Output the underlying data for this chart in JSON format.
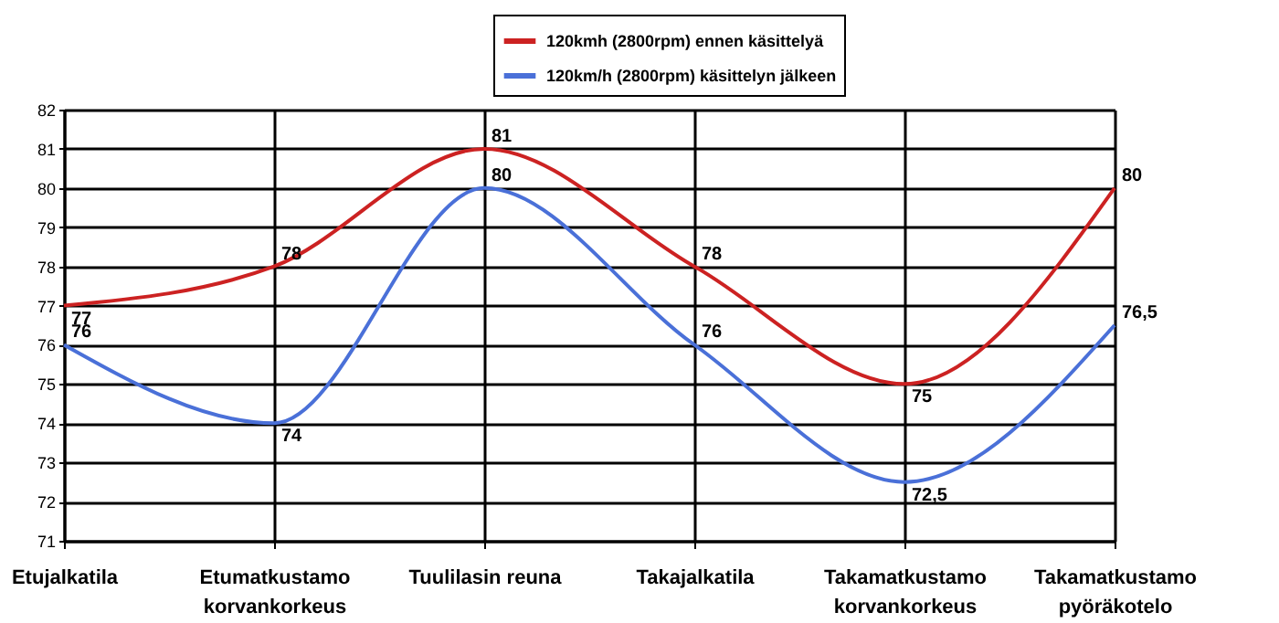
{
  "chart_data": {
    "type": "line",
    "categories": [
      "Etujalkatila",
      "Etumatkustamo\nkorvankorkeus",
      "Tuulilasin reuna",
      "Takajalkatila",
      "Takamatkustamo\nkorvankorkeus",
      "Takamatkustamo\npyöräkotelo"
    ],
    "series": [
      {
        "name": "120kmh (2800rpm) ennen käsittelyä",
        "color": "#cc2222",
        "values": [
          77,
          78,
          81,
          78,
          75,
          80
        ],
        "value_labels": [
          "77",
          "78",
          "81",
          "78",
          "75",
          "80"
        ]
      },
      {
        "name": "120km/h (2800rpm) käsittelyn jälkeen",
        "color": "#4a70d8",
        "values": [
          76,
          74,
          80,
          76,
          72.5,
          76.5
        ],
        "value_labels": [
          "76",
          "74",
          "80",
          "76",
          "72,5",
          "76,5"
        ]
      }
    ],
    "ylim": [
      71,
      82
    ],
    "yticks": [
      71,
      72,
      73,
      74,
      75,
      76,
      77,
      78,
      79,
      80,
      81,
      82
    ],
    "grid": true,
    "legend": "top",
    "marker": "none"
  }
}
